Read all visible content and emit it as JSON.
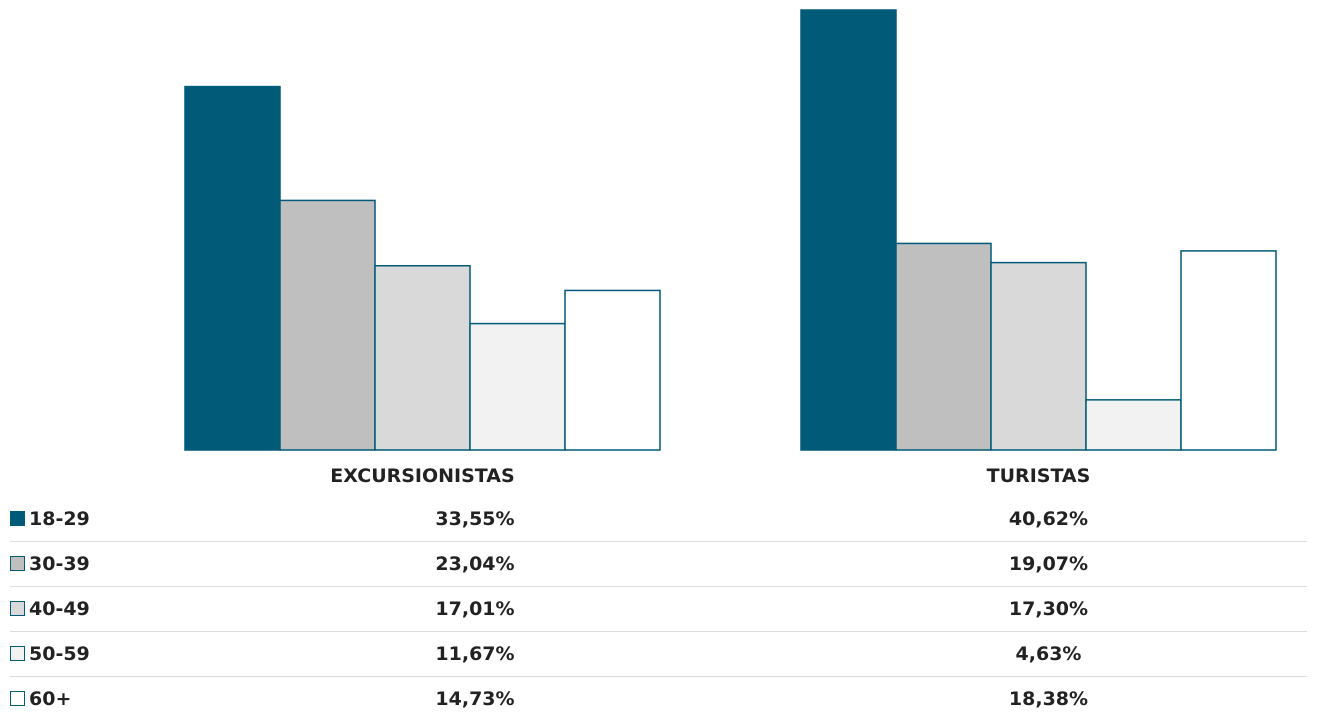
{
  "chart_data": {
    "type": "bar",
    "categories": [
      "EXCURSIONISTAS",
      "TURISTAS"
    ],
    "series": [
      {
        "name": "18-29",
        "values": [
          33.55,
          40.62
        ],
        "labels": [
          "33,55%",
          "40,62%"
        ],
        "color": "#005a78"
      },
      {
        "name": "30-39",
        "values": [
          23.04,
          19.07
        ],
        "labels": [
          "23,04%",
          "19,07%"
        ],
        "color": "#bfbfbf"
      },
      {
        "name": "40-49",
        "values": [
          17.01,
          17.3
        ],
        "labels": [
          "17,01%",
          "17,30%"
        ],
        "color": "#d9d9d9"
      },
      {
        "name": "50-59",
        "values": [
          11.67,
          4.63
        ],
        "labels": [
          "11,67%",
          "4,63%"
        ],
        "color": "#f2f2f2"
      },
      {
        "name": "60+",
        "values": [
          14.73,
          18.38
        ],
        "labels": [
          "14,73%",
          "18,38%"
        ],
        "color": "#ffffff"
      }
    ],
    "title": "",
    "xlabel": "",
    "ylabel": "",
    "ylim": [
      0,
      40.62
    ],
    "grid": false,
    "legend": "data-table-left",
    "border_color": "#005a78"
  }
}
